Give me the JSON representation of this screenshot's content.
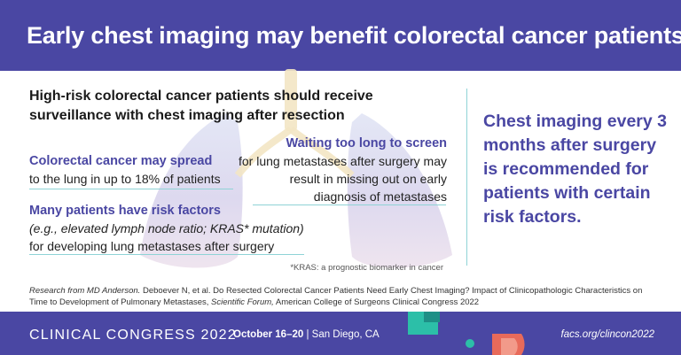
{
  "header": {
    "title": "Early chest imaging may benefit colorectal cancer patients"
  },
  "main": {
    "headline": "High-risk colorectal cancer patients should receive surveillance with chest imaging after resection",
    "point1": {
      "lead": "Colorectal cancer may spread",
      "text": "to the lung in up to 18% of patients"
    },
    "point2": {
      "lead": "Waiting too long to screen",
      "text": "for lung metastases after surgery may result in missing out on early diagnosis of metastases"
    },
    "point3": {
      "lead": "Many patients have risk factors",
      "italic": "(e.g., elevated lymph node ratio; KRAS* mutation)",
      "text": "for developing lung metastases after surgery"
    },
    "footnote": "*KRAS: a prognostic biomarker in cancer"
  },
  "callout": "Chest imaging every 3 months after surgery is recommended for patients with certain risk factors.",
  "citation": {
    "italic_lead": "Research from MD Anderson.",
    "text": " Deboever N, et al. Do Resected Colorectal Cancer Patients Need Early Chest Imaging? Impact of Clinicopathologic Characteristics on Time to Development of Pulmonary Metastases, ",
    "italic_venue": "Scientific Forum,",
    "text_end": " American College of Surgeons Clinical Congress 2022"
  },
  "footer": {
    "congress": "CLINICAL CONGRESS 2022",
    "dates": "October 16–20",
    "location": " | San Diego, CA",
    "url": "facs.org/clincon2022"
  },
  "colors": {
    "brand_purple": "#4a47a3",
    "rule_teal": "#8fd3d6",
    "deco_teal": "#2cbfa8",
    "deco_coral": "#e86a5a"
  },
  "icons": {
    "lungs": "lungs-illustration",
    "footer_shapes": "decorative-shapes"
  }
}
